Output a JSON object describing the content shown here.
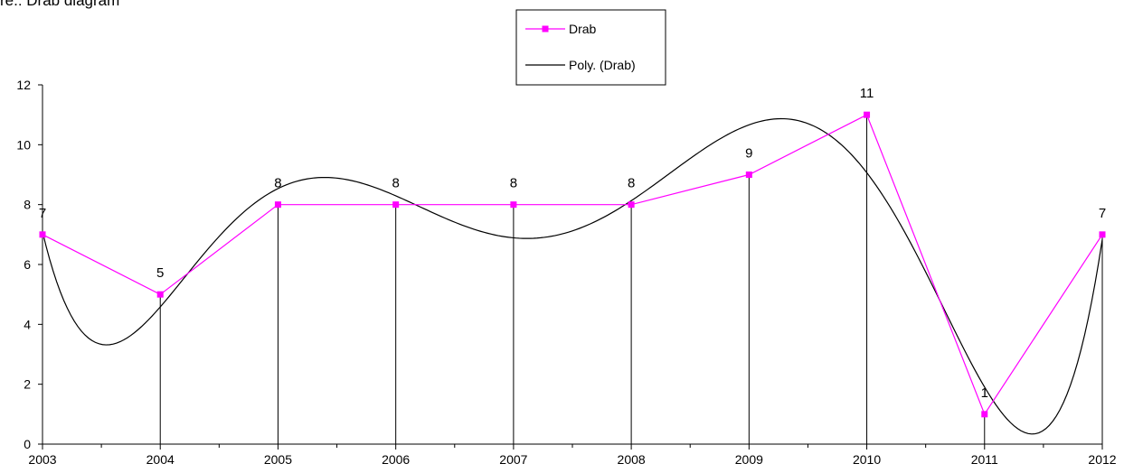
{
  "caption": "re.: Drab diagram",
  "colors": {
    "series": "#ff00ff",
    "trend": "#000000",
    "axis": "#000000"
  },
  "chart_data": {
    "type": "line",
    "title": "",
    "xlabel": "",
    "ylabel": "",
    "ylim": [
      0,
      12
    ],
    "ytick_step": 2,
    "categories": [
      "2003",
      "2004",
      "2005",
      "2006",
      "2007",
      "2008",
      "2009",
      "2010",
      "2011",
      "2012"
    ],
    "series": [
      {
        "name": "Drab",
        "values": [
          7,
          5,
          8,
          8,
          8,
          8,
          9,
          11,
          1,
          7
        ],
        "color": "#ff00ff",
        "marker": "square",
        "data_labels": true,
        "drop_lines": true
      },
      {
        "name": "Poly. (Drab)",
        "kind": "polynomial-trendline",
        "color": "#000000"
      }
    ],
    "legend": {
      "position": "top-center",
      "entries": [
        "Drab",
        "Poly. (Drab)"
      ]
    },
    "grid": false
  }
}
